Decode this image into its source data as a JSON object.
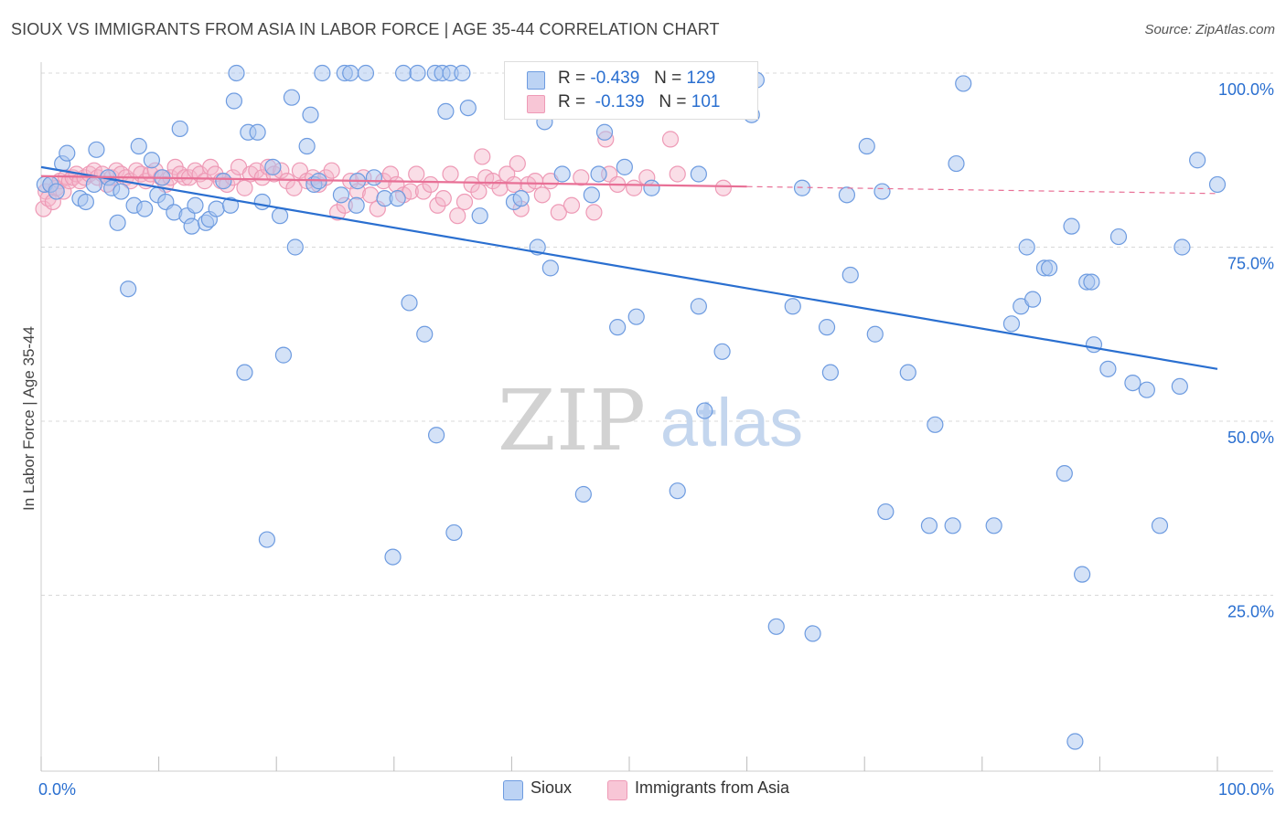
{
  "header": {
    "title": "SIOUX VS IMMIGRANTS FROM ASIA IN LABOR FORCE | AGE 35-44 CORRELATION CHART",
    "source": "Source: ZipAtlas.com"
  },
  "watermark": {
    "zip": "ZIP",
    "atlas": "atlas"
  },
  "legend": {
    "series": [
      {
        "r_label": "R =",
        "r_value": "-0.439",
        "n_label": "N =",
        "n_value": "129"
      },
      {
        "r_label": "R =",
        "r_value": "-0.139",
        "n_label": "N =",
        "n_value": "101"
      }
    ],
    "bottom": [
      "Sioux",
      "Immigrants from Asia"
    ]
  },
  "chart_data": {
    "type": "scatter",
    "title": "SIOUX VS IMMIGRANTS FROM ASIA IN LABOR FORCE | AGE 35-44 CORRELATION CHART",
    "xlabel": "",
    "ylabel": "In Labor Force | Age 35-44",
    "xlim": [
      0,
      100
    ],
    "ylim": [
      0,
      100
    ],
    "x_tick_labels": [
      "0.0%",
      "100.0%"
    ],
    "y_tick_labels": [
      "100.0%",
      "75.0%",
      "50.0%",
      "25.0%"
    ],
    "y_ticks": [
      100,
      75,
      50,
      25
    ],
    "grid": true,
    "colors": {
      "sioux": "#6d9be0",
      "asia": "#ee9ab6",
      "sioux_line": "#2a6fd0",
      "asia_line": "#e87096",
      "value_text": "#2a6fd0"
    },
    "series": [
      {
        "name": "Sioux",
        "R": -0.439,
        "N": 129,
        "trend": {
          "x": [
            0,
            100
          ],
          "y": [
            86.5,
            57.5
          ]
        },
        "points": [
          {
            "x": 0.3,
            "y": 84
          },
          {
            "x": 0.8,
            "y": 84
          },
          {
            "x": 1.3,
            "y": 83
          },
          {
            "x": 1.8,
            "y": 87
          },
          {
            "x": 2.2,
            "y": 88.5
          },
          {
            "x": 3.3,
            "y": 82
          },
          {
            "x": 3.8,
            "y": 81.5
          },
          {
            "x": 4.5,
            "y": 84
          },
          {
            "x": 4.7,
            "y": 89
          },
          {
            "x": 5.7,
            "y": 85
          },
          {
            "x": 6.0,
            "y": 83.5
          },
          {
            "x": 6.5,
            "y": 78.5
          },
          {
            "x": 6.8,
            "y": 83
          },
          {
            "x": 7.4,
            "y": 69
          },
          {
            "x": 7.9,
            "y": 81
          },
          {
            "x": 8.3,
            "y": 89.5
          },
          {
            "x": 8.8,
            "y": 80.5
          },
          {
            "x": 9.4,
            "y": 87.5
          },
          {
            "x": 9.9,
            "y": 82.5
          },
          {
            "x": 10.3,
            "y": 85
          },
          {
            "x": 10.6,
            "y": 81.5
          },
          {
            "x": 11.3,
            "y": 80
          },
          {
            "x": 11.8,
            "y": 92
          },
          {
            "x": 12.4,
            "y": 79.5
          },
          {
            "x": 12.8,
            "y": 78
          },
          {
            "x": 13.1,
            "y": 81
          },
          {
            "x": 14.0,
            "y": 78.5
          },
          {
            "x": 14.3,
            "y": 79
          },
          {
            "x": 14.9,
            "y": 80.5
          },
          {
            "x": 15.5,
            "y": 84.5
          },
          {
            "x": 16.1,
            "y": 81
          },
          {
            "x": 16.4,
            "y": 96
          },
          {
            "x": 16.6,
            "y": 100
          },
          {
            "x": 17.3,
            "y": 57
          },
          {
            "x": 17.6,
            "y": 91.5
          },
          {
            "x": 18.4,
            "y": 91.5
          },
          {
            "x": 18.8,
            "y": 81.5
          },
          {
            "x": 19.2,
            "y": 33
          },
          {
            "x": 19.7,
            "y": 86.5
          },
          {
            "x": 20.3,
            "y": 79.5
          },
          {
            "x": 20.6,
            "y": 59.5
          },
          {
            "x": 21.3,
            "y": 96.5
          },
          {
            "x": 21.6,
            "y": 75
          },
          {
            "x": 22.6,
            "y": 89.5
          },
          {
            "x": 22.9,
            "y": 94
          },
          {
            "x": 23.2,
            "y": 84
          },
          {
            "x": 23.6,
            "y": 84.5
          },
          {
            "x": 23.9,
            "y": 100
          },
          {
            "x": 25.5,
            "y": 82.5
          },
          {
            "x": 25.8,
            "y": 100
          },
          {
            "x": 26.3,
            "y": 100
          },
          {
            "x": 26.8,
            "y": 81
          },
          {
            "x": 26.9,
            "y": 84.5
          },
          {
            "x": 27.6,
            "y": 100
          },
          {
            "x": 28.3,
            "y": 85
          },
          {
            "x": 29.2,
            "y": 82
          },
          {
            "x": 29.9,
            "y": 30.5
          },
          {
            "x": 30.3,
            "y": 82
          },
          {
            "x": 30.8,
            "y": 100
          },
          {
            "x": 31.3,
            "y": 67
          },
          {
            "x": 32.0,
            "y": 100
          },
          {
            "x": 32.6,
            "y": 62.5
          },
          {
            "x": 33.5,
            "y": 100
          },
          {
            "x": 33.6,
            "y": 48
          },
          {
            "x": 34.1,
            "y": 100
          },
          {
            "x": 34.4,
            "y": 94.5
          },
          {
            "x": 34.8,
            "y": 100
          },
          {
            "x": 35.1,
            "y": 34
          },
          {
            "x": 35.8,
            "y": 100
          },
          {
            "x": 36.3,
            "y": 95
          },
          {
            "x": 37.3,
            "y": 79.5
          },
          {
            "x": 40.2,
            "y": 81.5
          },
          {
            "x": 40.8,
            "y": 82
          },
          {
            "x": 42.2,
            "y": 75
          },
          {
            "x": 42.8,
            "y": 93
          },
          {
            "x": 43.3,
            "y": 72
          },
          {
            "x": 44.3,
            "y": 85.5
          },
          {
            "x": 46.1,
            "y": 39.5
          },
          {
            "x": 46.8,
            "y": 82.5
          },
          {
            "x": 47.4,
            "y": 85.5
          },
          {
            "x": 47.9,
            "y": 91.5
          },
          {
            "x": 49.0,
            "y": 63.5
          },
          {
            "x": 49.6,
            "y": 86.5
          },
          {
            "x": 50.6,
            "y": 65
          },
          {
            "x": 51.9,
            "y": 83.5
          },
          {
            "x": 54.1,
            "y": 40
          },
          {
            "x": 55.9,
            "y": 85.5
          },
          {
            "x": 55.9,
            "y": 66.5
          },
          {
            "x": 56.4,
            "y": 51.5
          },
          {
            "x": 57.9,
            "y": 60
          },
          {
            "x": 59.9,
            "y": 100
          },
          {
            "x": 60.4,
            "y": 94
          },
          {
            "x": 60.8,
            "y": 99
          },
          {
            "x": 62.5,
            "y": 20.5
          },
          {
            "x": 63.9,
            "y": 66.5
          },
          {
            "x": 64.7,
            "y": 83.5
          },
          {
            "x": 65.6,
            "y": 19.5
          },
          {
            "x": 66.8,
            "y": 63.5
          },
          {
            "x": 67.1,
            "y": 57
          },
          {
            "x": 68.5,
            "y": 82.5
          },
          {
            "x": 68.8,
            "y": 71
          },
          {
            "x": 70.2,
            "y": 89.5
          },
          {
            "x": 70.9,
            "y": 62.5
          },
          {
            "x": 71.5,
            "y": 83
          },
          {
            "x": 71.8,
            "y": 37
          },
          {
            "x": 73.7,
            "y": 57
          },
          {
            "x": 75.5,
            "y": 35
          },
          {
            "x": 76.0,
            "y": 49.5
          },
          {
            "x": 77.5,
            "y": 35
          },
          {
            "x": 77.8,
            "y": 87
          },
          {
            "x": 78.4,
            "y": 98.5
          },
          {
            "x": 81.0,
            "y": 35
          },
          {
            "x": 82.5,
            "y": 64
          },
          {
            "x": 83.3,
            "y": 66.5
          },
          {
            "x": 83.8,
            "y": 75
          },
          {
            "x": 84.3,
            "y": 67.5
          },
          {
            "x": 85.3,
            "y": 72
          },
          {
            "x": 85.7,
            "y": 72
          },
          {
            "x": 87.0,
            "y": 42.5
          },
          {
            "x": 87.6,
            "y": 78
          },
          {
            "x": 87.9,
            "y": 4
          },
          {
            "x": 88.5,
            "y": 28
          },
          {
            "x": 88.9,
            "y": 70
          },
          {
            "x": 89.3,
            "y": 70
          },
          {
            "x": 89.5,
            "y": 61
          },
          {
            "x": 90.7,
            "y": 57.5
          },
          {
            "x": 91.6,
            "y": 76.5
          },
          {
            "x": 92.8,
            "y": 55.5
          },
          {
            "x": 94.0,
            "y": 54.5
          },
          {
            "x": 95.1,
            "y": 35
          },
          {
            "x": 96.8,
            "y": 55
          },
          {
            "x": 97.0,
            "y": 75
          },
          {
            "x": 98.3,
            "y": 87.5
          },
          {
            "x": 100.0,
            "y": 84
          }
        ]
      },
      {
        "name": "Immigrants from Asia",
        "R": -0.139,
        "N": 101,
        "trend": {
          "x": [
            0,
            100
          ],
          "y": [
            85.2,
            82.7
          ],
          "solid_until": 60
        },
        "points": [
          {
            "x": 0.2,
            "y": 80.5
          },
          {
            "x": 0.4,
            "y": 83
          },
          {
            "x": 0.6,
            "y": 82
          },
          {
            "x": 0.8,
            "y": 84
          },
          {
            "x": 1.0,
            "y": 81.5
          },
          {
            "x": 1.3,
            "y": 83.5
          },
          {
            "x": 1.6,
            "y": 84.5
          },
          {
            "x": 1.9,
            "y": 83
          },
          {
            "x": 2.1,
            "y": 85
          },
          {
            "x": 2.4,
            "y": 84.5
          },
          {
            "x": 2.7,
            "y": 85
          },
          {
            "x": 3.0,
            "y": 85.5
          },
          {
            "x": 3.3,
            "y": 84.5
          },
          {
            "x": 3.7,
            "y": 85
          },
          {
            "x": 4.1,
            "y": 85.5
          },
          {
            "x": 4.5,
            "y": 86
          },
          {
            "x": 4.8,
            "y": 85
          },
          {
            "x": 5.2,
            "y": 85.5
          },
          {
            "x": 5.6,
            "y": 84
          },
          {
            "x": 6.0,
            "y": 85
          },
          {
            "x": 6.4,
            "y": 86
          },
          {
            "x": 6.8,
            "y": 85.5
          },
          {
            "x": 7.2,
            "y": 85
          },
          {
            "x": 7.6,
            "y": 84.5
          },
          {
            "x": 8.1,
            "y": 86
          },
          {
            "x": 8.5,
            "y": 85.5
          },
          {
            "x": 8.9,
            "y": 84.5
          },
          {
            "x": 9.3,
            "y": 85.5
          },
          {
            "x": 9.7,
            "y": 86
          },
          {
            "x": 10.2,
            "y": 85
          },
          {
            "x": 10.6,
            "y": 84
          },
          {
            "x": 11.0,
            "y": 85
          },
          {
            "x": 11.4,
            "y": 86.5
          },
          {
            "x": 11.8,
            "y": 85.5
          },
          {
            "x": 12.2,
            "y": 85
          },
          {
            "x": 12.6,
            "y": 85
          },
          {
            "x": 13.1,
            "y": 86
          },
          {
            "x": 13.5,
            "y": 85.5
          },
          {
            "x": 13.9,
            "y": 84.5
          },
          {
            "x": 14.4,
            "y": 86.5
          },
          {
            "x": 14.8,
            "y": 85.5
          },
          {
            "x": 15.3,
            "y": 84.5
          },
          {
            "x": 15.8,
            "y": 84
          },
          {
            "x": 16.3,
            "y": 85
          },
          {
            "x": 16.8,
            "y": 86.5
          },
          {
            "x": 17.3,
            "y": 83.5
          },
          {
            "x": 17.8,
            "y": 85.5
          },
          {
            "x": 18.3,
            "y": 86
          },
          {
            "x": 18.8,
            "y": 85
          },
          {
            "x": 19.3,
            "y": 86.5
          },
          {
            "x": 19.8,
            "y": 85.5
          },
          {
            "x": 20.4,
            "y": 86
          },
          {
            "x": 20.9,
            "y": 84.5
          },
          {
            "x": 21.5,
            "y": 83.5
          },
          {
            "x": 22.0,
            "y": 86
          },
          {
            "x": 22.6,
            "y": 84.5
          },
          {
            "x": 23.1,
            "y": 85
          },
          {
            "x": 23.6,
            "y": 84
          },
          {
            "x": 24.2,
            "y": 85
          },
          {
            "x": 24.7,
            "y": 86
          },
          {
            "x": 25.2,
            "y": 80
          },
          {
            "x": 25.8,
            "y": 81
          },
          {
            "x": 26.3,
            "y": 84.5
          },
          {
            "x": 26.9,
            "y": 83
          },
          {
            "x": 27.4,
            "y": 85
          },
          {
            "x": 28.0,
            "y": 82.5
          },
          {
            "x": 28.6,
            "y": 80.5
          },
          {
            "x": 29.1,
            "y": 84.5
          },
          {
            "x": 29.7,
            "y": 85.5
          },
          {
            "x": 30.2,
            "y": 84
          },
          {
            "x": 30.8,
            "y": 82.5
          },
          {
            "x": 31.4,
            "y": 83
          },
          {
            "x": 31.9,
            "y": 85.5
          },
          {
            "x": 32.5,
            "y": 83
          },
          {
            "x": 33.1,
            "y": 84
          },
          {
            "x": 33.7,
            "y": 81
          },
          {
            "x": 34.2,
            "y": 82
          },
          {
            "x": 34.8,
            "y": 85.5
          },
          {
            "x": 35.4,
            "y": 79.5
          },
          {
            "x": 36.0,
            "y": 81.5
          },
          {
            "x": 36.6,
            "y": 84
          },
          {
            "x": 37.2,
            "y": 83
          },
          {
            "x": 37.8,
            "y": 85
          },
          {
            "x": 38.4,
            "y": 84.5
          },
          {
            "x": 39.0,
            "y": 83.5
          },
          {
            "x": 39.6,
            "y": 85.5
          },
          {
            "x": 40.2,
            "y": 84
          },
          {
            "x": 40.8,
            "y": 80.5
          },
          {
            "x": 41.4,
            "y": 84
          },
          {
            "x": 42.0,
            "y": 84.5
          },
          {
            "x": 42.6,
            "y": 82.5
          },
          {
            "x": 43.3,
            "y": 84.5
          },
          {
            "x": 44.0,
            "y": 80
          },
          {
            "x": 45.1,
            "y": 81
          },
          {
            "x": 45.9,
            "y": 85
          },
          {
            "x": 47.0,
            "y": 80
          },
          {
            "x": 48.3,
            "y": 85.5
          },
          {
            "x": 49.0,
            "y": 84
          },
          {
            "x": 50.4,
            "y": 83.5
          },
          {
            "x": 51.5,
            "y": 85
          },
          {
            "x": 53.5,
            "y": 90.5
          },
          {
            "x": 54.1,
            "y": 85.5
          },
          {
            "x": 58.0,
            "y": 83.5
          },
          {
            "x": 48.0,
            "y": 90.5
          },
          {
            "x": 37.5,
            "y": 88
          },
          {
            "x": 40.5,
            "y": 87
          }
        ]
      }
    ]
  }
}
